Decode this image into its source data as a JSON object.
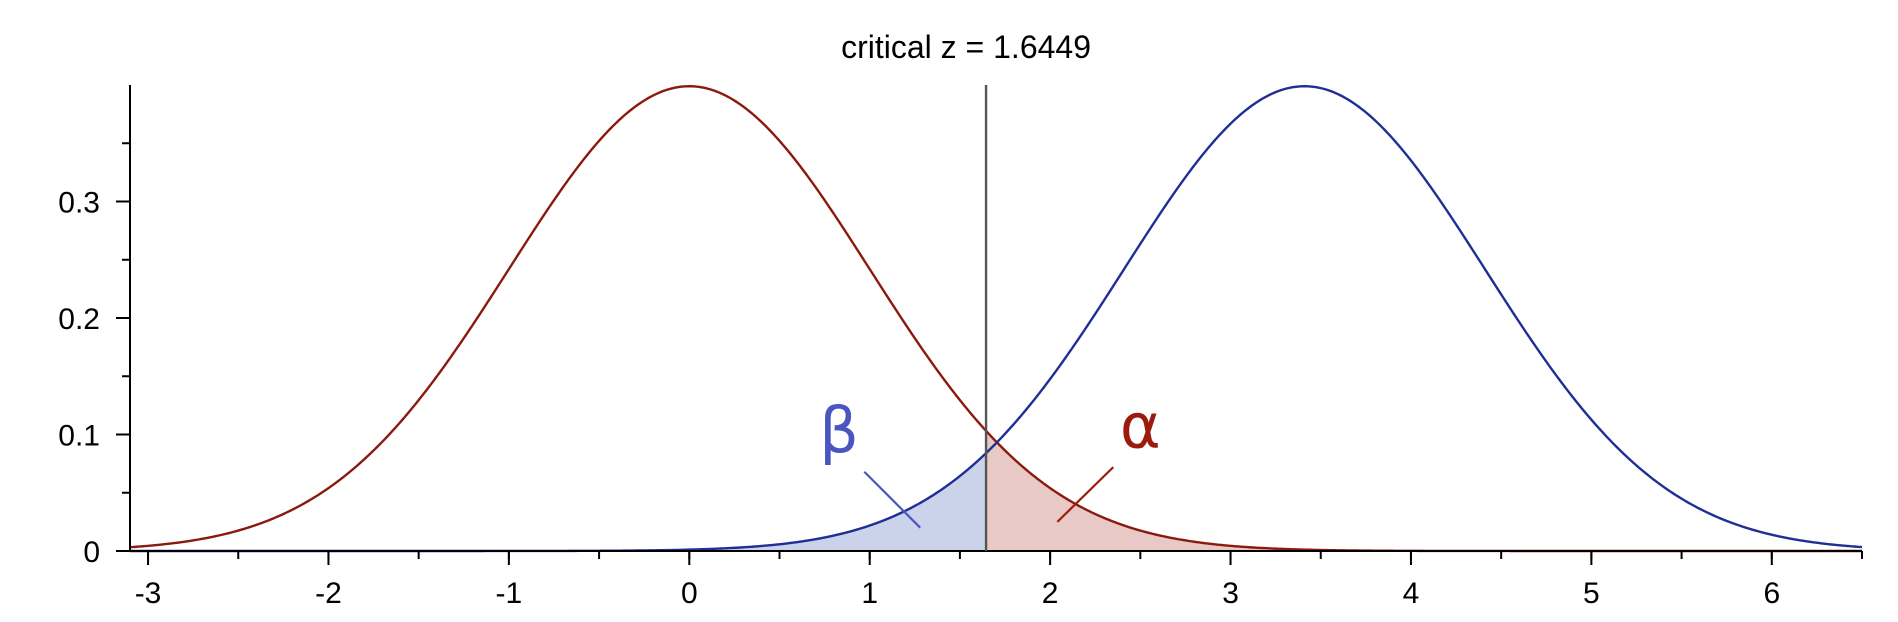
{
  "chart_data": {
    "type": "area",
    "title": "critical z = 1.6449",
    "xlabel": "",
    "ylabel": "",
    "xlim": [
      -3.1,
      6.5
    ],
    "ylim": [
      0,
      0.4
    ],
    "x_ticks": [
      -3,
      -2,
      -1,
      0,
      1,
      2,
      3,
      4,
      5,
      6
    ],
    "x_tick_labels": [
      "-3",
      "-2",
      "-1",
      "0",
      "1",
      "2",
      "3",
      "4",
      "5",
      "6"
    ],
    "y_ticks": [
      0,
      0.1,
      0.2,
      0.3
    ],
    "y_tick_labels": [
      "0",
      "0.1",
      "0.2",
      "0.3"
    ],
    "critical_z": 1.6449,
    "series": [
      {
        "distribution": "normal",
        "mean": 0,
        "sd": 1,
        "color": "#8b1a0e",
        "shade": "right-of-critical",
        "shade_color": "#e9c9c5"
      },
      {
        "distribution": "normal",
        "mean": 3.41,
        "sd": 1,
        "color": "#1f2f96",
        "shade": "left-of-critical",
        "shade_color": "#cbd3ea"
      }
    ],
    "annotations": [
      {
        "text": "β",
        "color": "#4a55c0",
        "points_to": "left-of-critical"
      },
      {
        "text": "α",
        "color": "#9b1b0d",
        "points_to": "right-of-critical"
      }
    ],
    "grid": false,
    "legend": "none"
  }
}
